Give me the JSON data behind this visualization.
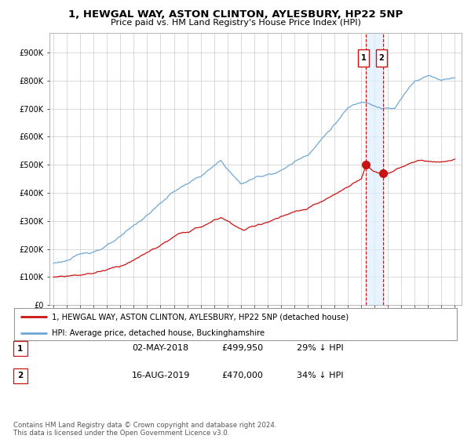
{
  "title": "1, HEWGAL WAY, ASTON CLINTON, AYLESBURY, HP22 5NP",
  "subtitle": "Price paid vs. HM Land Registry's House Price Index (HPI)",
  "ylabel_ticks": [
    "£0",
    "£100K",
    "£200K",
    "£300K",
    "£400K",
    "£500K",
    "£600K",
    "£700K",
    "£800K",
    "£900K"
  ],
  "ytick_values": [
    0,
    100000,
    200000,
    300000,
    400000,
    500000,
    600000,
    700000,
    800000,
    900000
  ],
  "ylim": [
    0,
    970000
  ],
  "hpi_color": "#6fa8d6",
  "price_color": "#cc1111",
  "dashed_color": "#cc1111",
  "shade_color": "#ddeeff",
  "marker1_year": 2018.33,
  "marker1_price": 499950,
  "marker2_year": 2019.62,
  "marker2_price": 470000,
  "legend_label1": "1, HEWGAL WAY, ASTON CLINTON, AYLESBURY, HP22 5NP (detached house)",
  "legend_label2": "HPI: Average price, detached house, Buckinghamshire",
  "table_row1": [
    "1",
    "02-MAY-2018",
    "£499,950",
    "29% ↓ HPI"
  ],
  "table_row2": [
    "2",
    "16-AUG-2019",
    "£470,000",
    "34% ↓ HPI"
  ],
  "footer": "Contains HM Land Registry data © Crown copyright and database right 2024.\nThis data is licensed under the Open Government Licence v3.0.",
  "background_color": "#ffffff",
  "grid_color": "#cccccc",
  "title_fontsize": 9.5,
  "subtitle_fontsize": 8,
  "tick_fontsize": 7
}
